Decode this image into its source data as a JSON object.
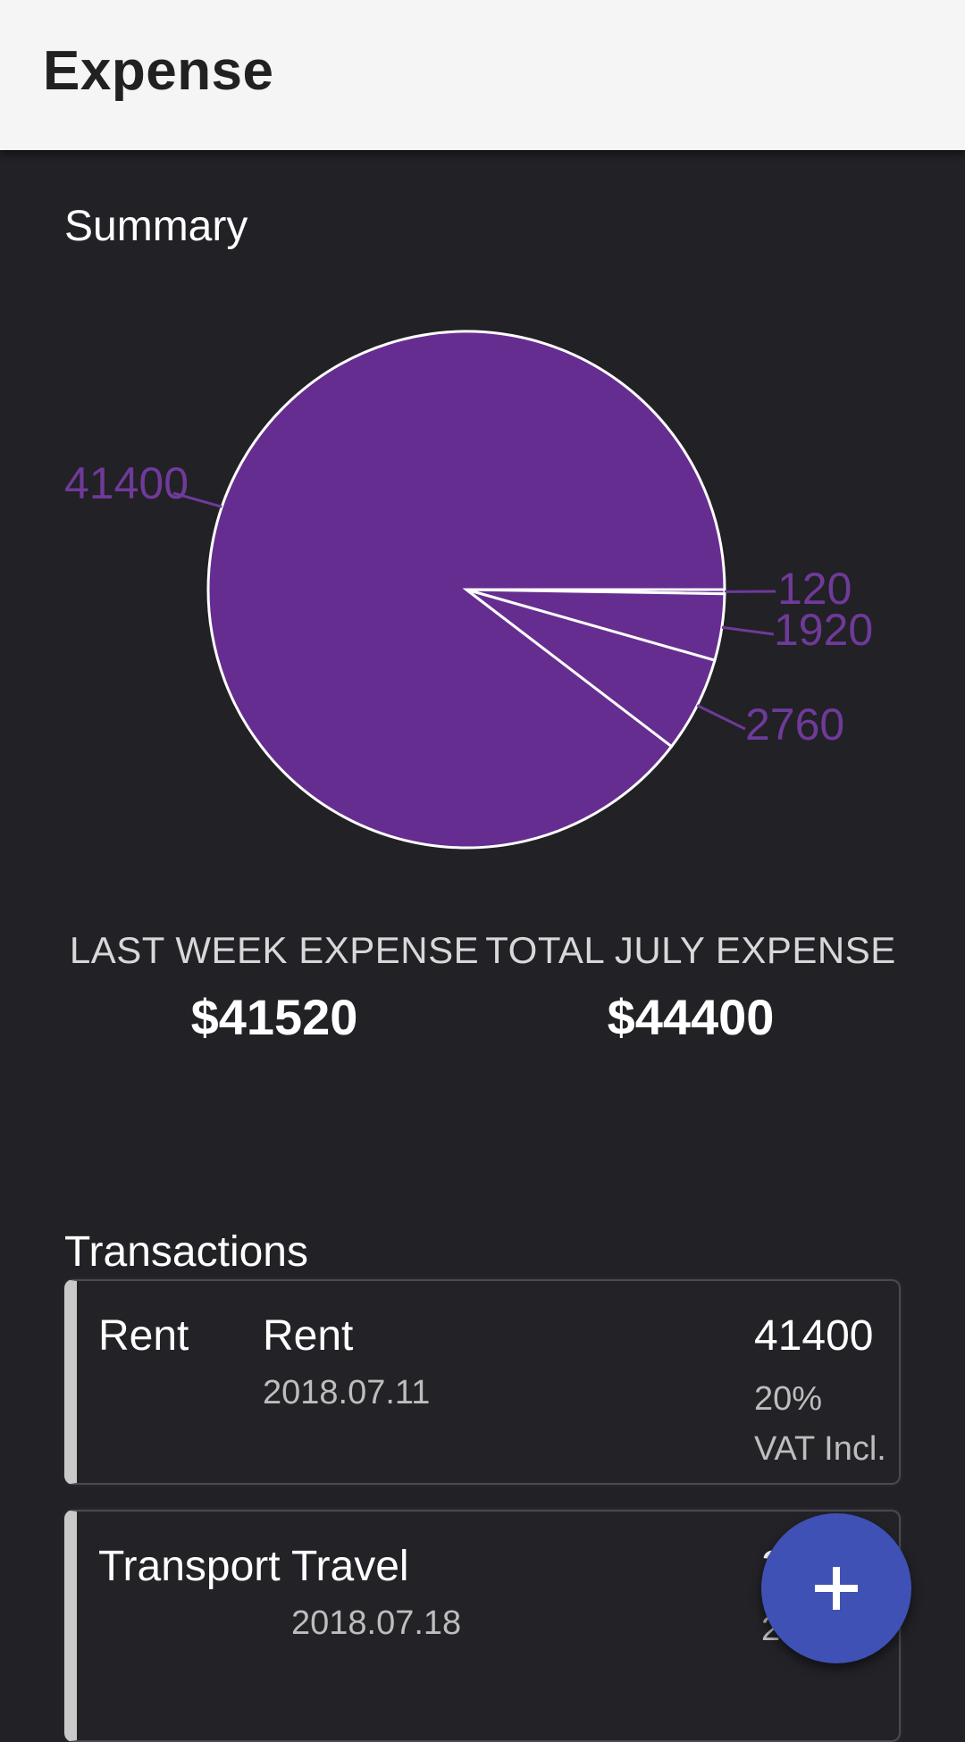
{
  "appbar": {
    "title": "Expense"
  },
  "summary": {
    "heading": "Summary"
  },
  "chart_data": {
    "type": "pie",
    "values": [
      41400,
      120,
      1920,
      2760
    ],
    "labels": [
      "41400",
      "120",
      "1920",
      "2760"
    ],
    "colors": [
      "#662d91",
      "#662d91",
      "#662d91",
      "#662d91"
    ],
    "stroke_color": "#ffffff",
    "label_color": "#6f3a99"
  },
  "stats": {
    "last_week_label": "LAST WEEK EXPENSE",
    "last_week_value": "$41520",
    "total_label": "TOTAL JULY EXPENSE",
    "total_value": "$44400"
  },
  "transactions": {
    "heading": "Transactions",
    "items": [
      {
        "category": "Rent",
        "description": "Rent",
        "date": "2018.07.11",
        "amount": "41400",
        "vat": "20% VAT Incl."
      },
      {
        "category": "Transport",
        "description": "Travel",
        "date": "2018.07.18",
        "amount": "2",
        "vat": "2 Incl."
      }
    ]
  },
  "fab": {
    "icon": "plus-icon",
    "color": "#3f51b5"
  }
}
